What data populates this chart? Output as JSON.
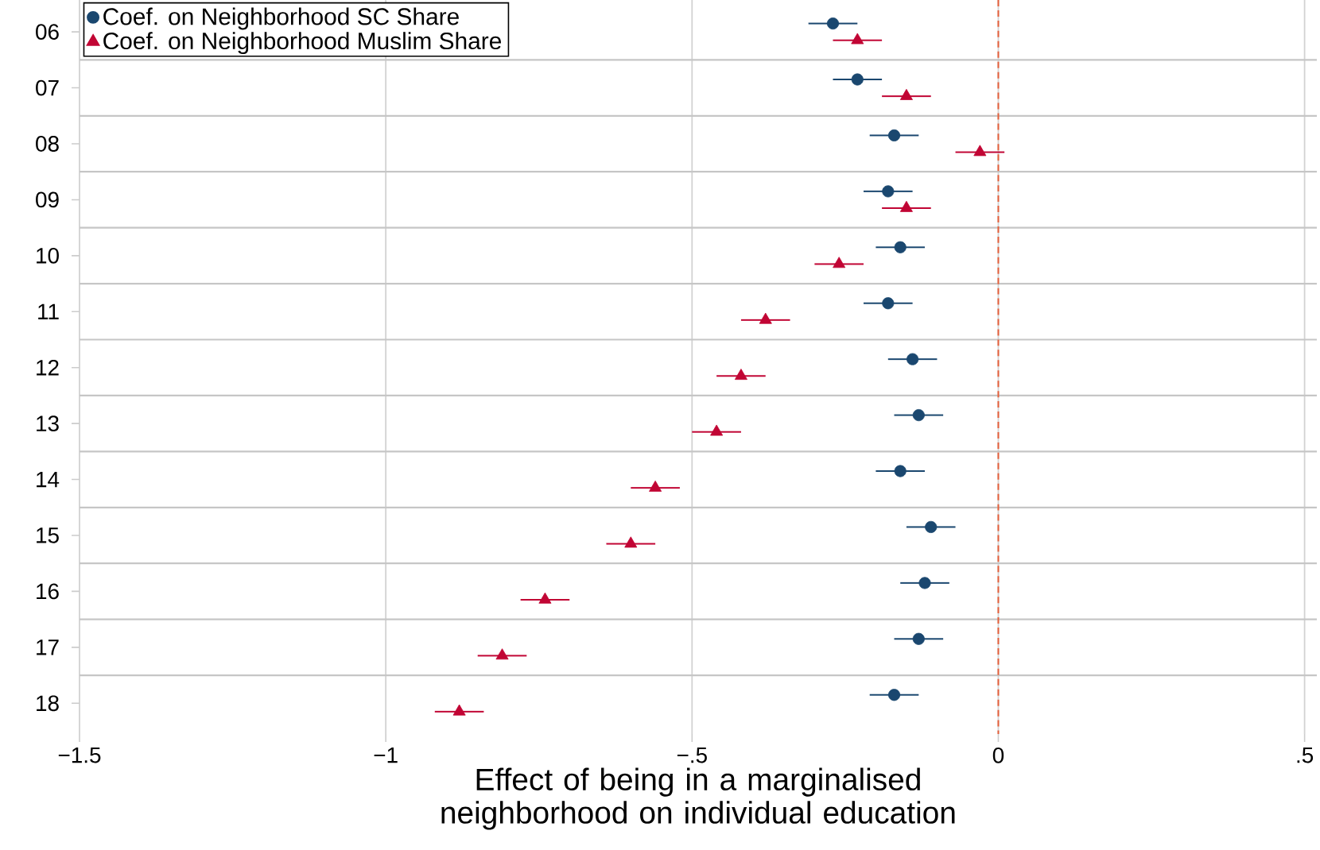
{
  "chart_data": {
    "type": "scatter",
    "orientation": "horizontal",
    "xlabel": "Effect of being in a marginalised neighborhood on individual education",
    "categories": [
      "06",
      "07",
      "08",
      "09",
      "10",
      "11",
      "12",
      "13",
      "14",
      "15",
      "16",
      "17",
      "18"
    ],
    "series": [
      {
        "name": "Coef. on Neighborhood SC Share",
        "color": "#1a476f",
        "marker": "circle",
        "values": [
          -0.27,
          -0.23,
          -0.17,
          -0.18,
          -0.16,
          -0.18,
          -0.14,
          -0.13,
          -0.16,
          -0.11,
          -0.12,
          -0.13,
          -0.17
        ],
        "errors": [
          0.04,
          0.04,
          0.04,
          0.04,
          0.04,
          0.04,
          0.04,
          0.04,
          0.04,
          0.04,
          0.04,
          0.04,
          0.04
        ]
      },
      {
        "name": "Coef. on Neighborhood Muslim Share",
        "color": "#c10534",
        "marker": "triangle",
        "values": [
          -0.23,
          -0.15,
          -0.03,
          -0.15,
          -0.26,
          -0.38,
          -0.42,
          -0.46,
          -0.56,
          -0.6,
          -0.74,
          -0.81,
          -0.88
        ],
        "errors": [
          0.04,
          0.04,
          0.04,
          0.04,
          0.04,
          0.04,
          0.04,
          0.04,
          0.04,
          0.04,
          0.04,
          0.04,
          0.04
        ]
      }
    ],
    "xlim": [
      -1.5,
      0.52
    ],
    "xticks": [
      {
        "value": -1.5,
        "label": "−1.5"
      },
      {
        "value": -1,
        "label": "−1"
      },
      {
        "value": -0.5,
        "label": "−.5"
      },
      {
        "value": 0,
        "label": "0"
      },
      {
        "value": 0.5,
        "label": ".5"
      }
    ],
    "ref_lines": [
      {
        "axis": "x",
        "value": 0,
        "color": "#e5603b",
        "line_style": "dashed"
      }
    ],
    "grid": true,
    "legend": "top left"
  }
}
